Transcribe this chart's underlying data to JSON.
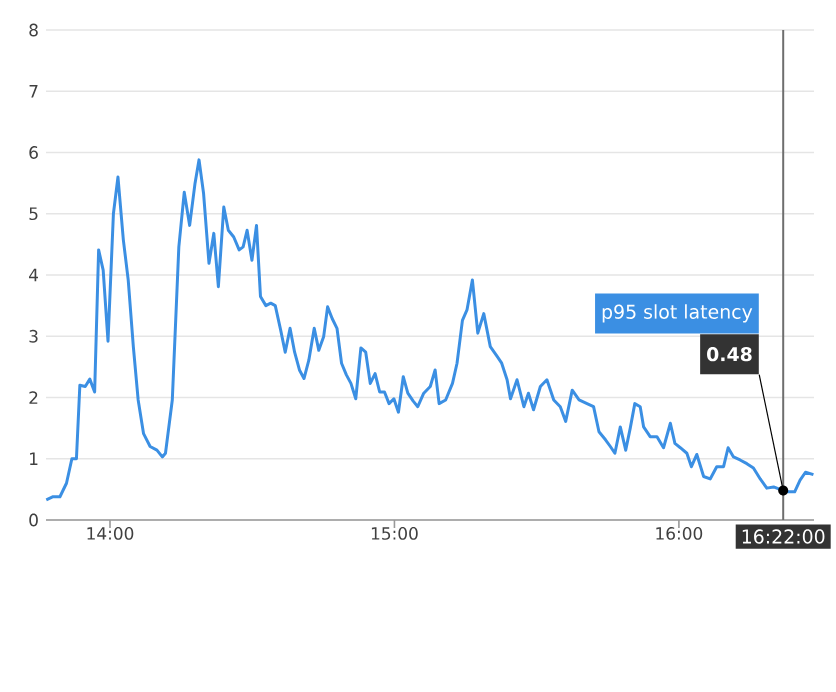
{
  "chart_data": {
    "type": "line",
    "x": [
      13.776,
      13.8,
      13.824,
      13.847,
      13.866,
      13.882,
      13.894,
      13.913,
      13.929,
      13.946,
      13.96,
      13.976,
      13.993,
      14.012,
      14.028,
      14.047,
      14.064,
      14.082,
      14.099,
      14.118,
      14.141,
      14.165,
      14.184,
      14.195,
      14.219,
      14.242,
      14.261,
      14.28,
      14.299,
      14.313,
      14.329,
      14.348,
      14.365,
      14.381,
      14.4,
      14.416,
      14.435,
      14.454,
      14.468,
      14.482,
      14.499,
      14.515,
      14.529,
      14.548,
      14.565,
      14.581,
      14.6,
      14.616,
      14.633,
      14.649,
      14.666,
      14.682,
      14.699,
      14.718,
      14.734,
      14.751,
      14.765,
      14.781,
      14.798,
      14.814,
      14.831,
      14.847,
      14.864,
      14.882,
      14.899,
      14.915,
      14.932,
      14.948,
      14.965,
      14.981,
      14.998,
      15.014,
      15.031,
      15.047,
      15.066,
      15.082,
      15.103,
      15.126,
      15.143,
      15.157,
      15.18,
      15.204,
      15.22,
      15.239,
      15.255,
      15.274,
      15.293,
      15.314,
      15.337,
      15.361,
      15.377,
      15.396,
      15.408,
      15.431,
      15.455,
      15.471,
      15.489,
      15.513,
      15.536,
      15.56,
      15.583,
      15.602,
      15.625,
      15.649,
      15.677,
      15.7,
      15.719,
      15.742,
      15.759,
      15.775,
      15.794,
      15.813,
      15.829,
      15.845,
      15.864,
      15.876,
      15.899,
      15.923,
      15.946,
      15.97,
      15.986,
      16.005,
      16.028,
      16.044,
      16.063,
      16.087,
      16.11,
      16.133,
      16.157,
      16.173,
      16.192,
      16.215,
      16.239,
      16.262,
      16.286,
      16.309,
      16.333,
      16.3667,
      16.379,
      16.407,
      16.426,
      16.445,
      16.473
    ],
    "series": [
      {
        "name": "p95 slot latency",
        "color": "#3b8fe3",
        "values": [
          0.33,
          0.38,
          0.38,
          0.6,
          1.0,
          1.0,
          2.2,
          2.18,
          2.3,
          2.09,
          4.41,
          4.08,
          2.92,
          5.0,
          5.6,
          4.57,
          3.92,
          2.83,
          1.96,
          1.41,
          1.2,
          1.14,
          1.03,
          1.09,
          1.96,
          4.46,
          5.35,
          4.81,
          5.5,
          5.88,
          5.33,
          4.19,
          4.68,
          3.81,
          5.11,
          4.73,
          4.62,
          4.41,
          4.46,
          4.73,
          4.24,
          4.81,
          3.65,
          3.5,
          3.54,
          3.5,
          3.1,
          2.74,
          3.13,
          2.74,
          2.45,
          2.31,
          2.61,
          3.13,
          2.77,
          2.99,
          3.48,
          3.29,
          3.13,
          2.56,
          2.37,
          2.23,
          1.98,
          2.81,
          2.74,
          2.23,
          2.39,
          2.09,
          2.09,
          1.9,
          1.98,
          1.76,
          2.34,
          2.07,
          1.94,
          1.85,
          2.07,
          2.18,
          2.45,
          1.9,
          1.96,
          2.23,
          2.56,
          3.26,
          3.43,
          3.92,
          3.05,
          3.37,
          2.83,
          2.67,
          2.56,
          2.29,
          1.98,
          2.29,
          1.85,
          2.07,
          1.8,
          2.18,
          2.29,
          1.96,
          1.85,
          1.61,
          2.12,
          1.96,
          1.9,
          1.85,
          1.44,
          1.31,
          1.2,
          1.09,
          1.52,
          1.14,
          1.5,
          1.9,
          1.85,
          1.52,
          1.36,
          1.36,
          1.18,
          1.58,
          1.25,
          1.18,
          1.09,
          0.87,
          1.07,
          0.71,
          0.67,
          0.87,
          0.87,
          1.18,
          1.03,
          0.98,
          0.92,
          0.85,
          0.67,
          0.52,
          0.54,
          0.48,
          0.46,
          0.46,
          0.65,
          0.78,
          0.74
        ]
      }
    ],
    "xlim": [
      13.775,
      16.475
    ],
    "xticks": [
      {
        "value": 14,
        "label": "14:00"
      },
      {
        "value": 15,
        "label": "15:00"
      },
      {
        "value": 16,
        "label": "16:00"
      }
    ],
    "ylim": [
      0,
      8
    ],
    "yticks": [
      0,
      1,
      2,
      3,
      4,
      5,
      6,
      7,
      8
    ],
    "grid": "y",
    "ref_lines": [
      {
        "axis": "x",
        "value": 16.3667,
        "label": "16:22:00",
        "color": "#6e6e6e"
      }
    ],
    "annotations": [
      {
        "text": "0.48",
        "x": 16.3667,
        "y": 0.48
      }
    ]
  }
}
